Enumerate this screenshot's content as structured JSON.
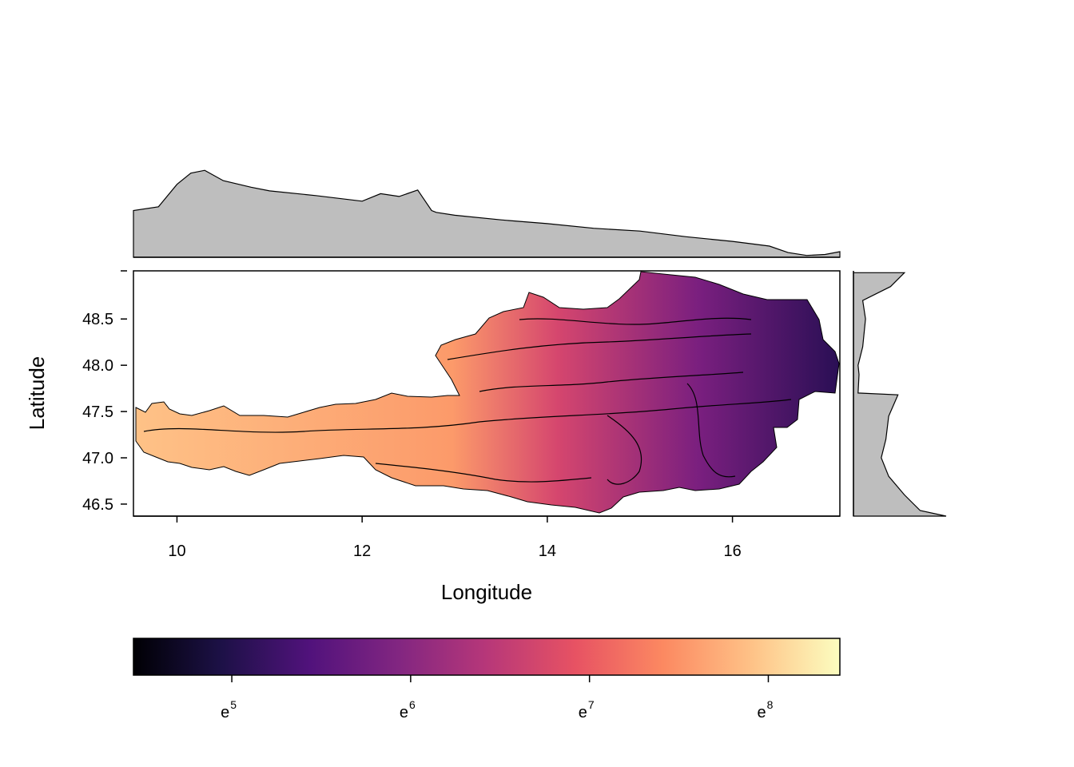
{
  "chart_data": {
    "type": "raster-map",
    "xlabel": "Longitude",
    "ylabel": "Latitude",
    "xlim": [
      9.53,
      17.16
    ],
    "ylim": [
      46.37,
      49.02
    ],
    "x_ticks": [
      {
        "value": 10,
        "label": "10"
      },
      {
        "value": 12,
        "label": "12"
      },
      {
        "value": 14,
        "label": "14"
      },
      {
        "value": 16,
        "label": "16"
      }
    ],
    "y_ticks": [
      {
        "value": 46.5,
        "label": "46.5"
      },
      {
        "value": 47.0,
        "label": "47.0"
      },
      {
        "value": 47.5,
        "label": "47.5"
      },
      {
        "value": 48.0,
        "label": "48.0"
      },
      {
        "value": 48.5,
        "label": "48.5"
      }
    ],
    "colorbar": {
      "palette": "magma",
      "scale": "log",
      "range_ln": [
        4.45,
        8.4
      ],
      "ticks": [
        {
          "ln": 5,
          "base": "e",
          "exp": "5"
        },
        {
          "ln": 6,
          "base": "e",
          "exp": "6"
        },
        {
          "ln": 7,
          "base": "e",
          "exp": "7"
        },
        {
          "ln": 8,
          "base": "e",
          "exp": "8"
        }
      ],
      "colors": [
        "#000004",
        "#1d1147",
        "#51127c",
        "#822681",
        "#b73779",
        "#e75263",
        "#fc8961",
        "#fec287",
        "#fcfdbf"
      ]
    },
    "marginal_top": {
      "fill": "#bebebe",
      "x": [
        9.53,
        9.8,
        10.0,
        10.15,
        10.3,
        10.5,
        10.8,
        11.0,
        11.5,
        12.0,
        12.2,
        12.4,
        12.6,
        12.75,
        12.8,
        13.0,
        13.5,
        14.0,
        14.5,
        15.0,
        15.5,
        16.0,
        16.4,
        16.6,
        16.8,
        17.0,
        17.16
      ],
      "y": [
        0.5,
        0.54,
        0.78,
        0.9,
        0.93,
        0.82,
        0.75,
        0.71,
        0.66,
        0.6,
        0.68,
        0.65,
        0.72,
        0.5,
        0.48,
        0.45,
        0.4,
        0.36,
        0.31,
        0.28,
        0.22,
        0.17,
        0.12,
        0.05,
        0.02,
        0.03,
        0.06
      ]
    },
    "marginal_right": {
      "fill": "#bebebe",
      "lat": [
        46.37,
        46.43,
        46.6,
        46.8,
        47.0,
        47.2,
        47.45,
        47.68,
        47.7,
        47.9,
        48.0,
        48.2,
        48.5,
        48.7,
        48.85,
        49.0
      ],
      "value": [
        1.0,
        0.72,
        0.55,
        0.38,
        0.3,
        0.35,
        0.38,
        0.48,
        0.05,
        0.06,
        0.05,
        0.1,
        0.13,
        0.1,
        0.4,
        0.55
      ]
    }
  }
}
